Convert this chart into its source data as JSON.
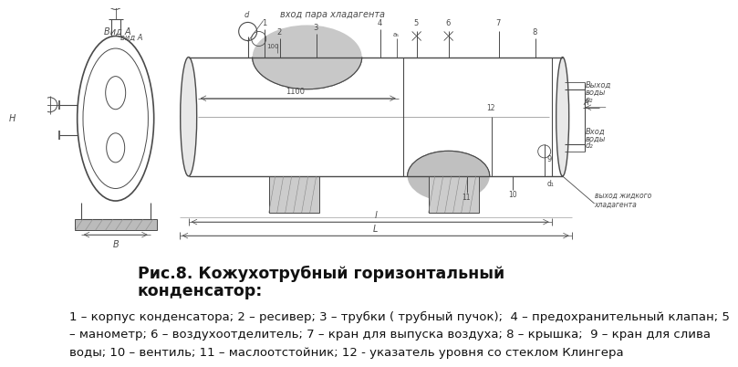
{
  "bg_color": "#f0f0f0",
  "title_line1": "Рис.8. Кожухотрубный горизонтальный",
  "title_line2": "конденсатор:",
  "desc_line1": "1 – корпус конденсатора; 2 – ресивер; 3 – трубки ( трубный пучок);  4 – предохранительный клапан; 5",
  "desc_line2": "– манометр; 6 – воздухоотделитель; 7 – кран для выпуска воздуха; 8 – крышка;  9 – кран для слива",
  "desc_line3": "воды; 10 – вентиль; 11 – маслоотстойник; 12 - указатель уровня со стеклом Клингера",
  "ink": "#4a4a4a",
  "light_ink": "#888888",
  "very_light": "#bbbbbb"
}
